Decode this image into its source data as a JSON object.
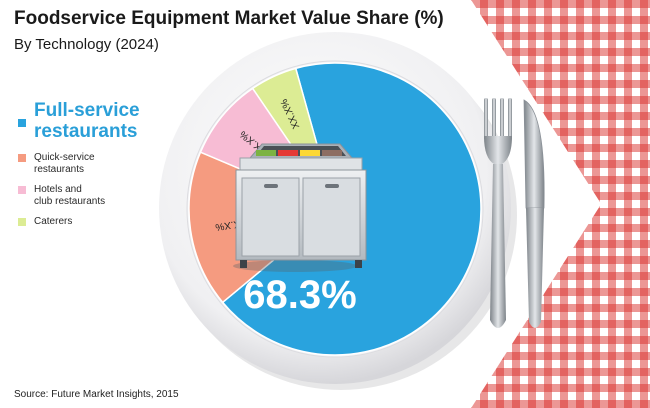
{
  "title": "Foodservice Equipment Market Value Share (%)",
  "subtitle": "By Technology (2024)",
  "source": "Source: Future Market Insights, 2015",
  "chart_data": {
    "type": "pie",
    "title": "Foodservice Equipment Market Value Share (%)",
    "subtitle": "By Technology (2024)",
    "categories": [
      "Full-service restaurants",
      "Quick-service restaurants",
      "Hotels and club restaurants",
      "Caterers"
    ],
    "values": [
      68.3,
      17.4,
      9.1,
      5.2
    ],
    "data_labels": [
      "68.3%",
      "XX.X%",
      "XX.X%",
      "XX.X%"
    ],
    "colors": [
      "#29a3de",
      "#f59b80",
      "#f7bcd4",
      "#dcec94"
    ],
    "legend_placement": "left"
  },
  "legend": [
    {
      "label": "Full-service restaurants",
      "line1": "Full-service",
      "line2": "restaurants",
      "color": "#29a3de"
    },
    {
      "label": "Quick-service restaurants",
      "line1": "Quick-service",
      "line2": "restaurants",
      "color": "#f59b80"
    },
    {
      "label": "Hotels and club restaurants",
      "line1": "Hotels and",
      "line2": "club restaurants",
      "color": "#f7bcd4"
    },
    {
      "label": "Caterers",
      "line1": "Caterers",
      "line2": "",
      "color": "#dcec94"
    }
  ],
  "colors": {
    "tablecloth_red": "#d9302b",
    "tablecloth_white": "#ffffff",
    "plate_rim": "#e9e9ec",
    "cutlery": "#9aa0a6"
  }
}
